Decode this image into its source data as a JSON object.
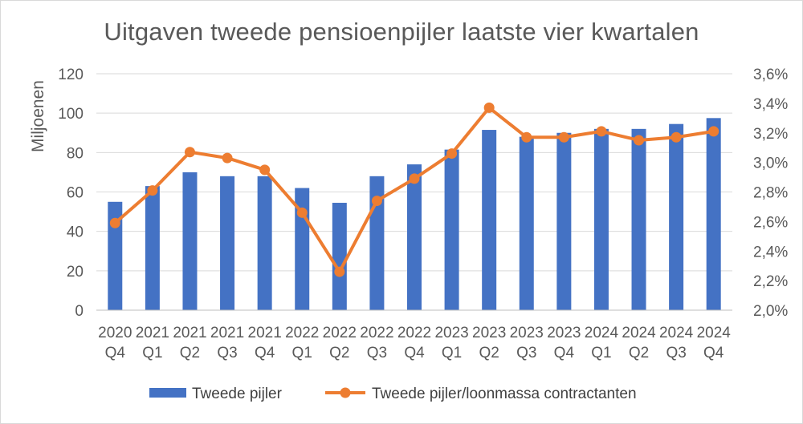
{
  "chart_data": {
    "type": "bar",
    "title": "Uitgaven tweede pensioenpijler laatste vier kwartalen",
    "ylabel": "Miljoenen",
    "ylim": [
      0,
      120
    ],
    "y_ticks": [
      "0",
      "20",
      "40",
      "60",
      "80",
      "100",
      "120"
    ],
    "y2lim": [
      2.0,
      3.6
    ],
    "y2_ticks": [
      "2,0%",
      "2,2%",
      "2,4%",
      "2,6%",
      "2,8%",
      "3,0%",
      "3,2%",
      "3,4%",
      "3,6%"
    ],
    "categories": [
      [
        "2020",
        "Q4"
      ],
      [
        "2021",
        "Q1"
      ],
      [
        "2021",
        "Q2"
      ],
      [
        "2021",
        "Q3"
      ],
      [
        "2021",
        "Q4"
      ],
      [
        "2022",
        "Q1"
      ],
      [
        "2022",
        "Q2"
      ],
      [
        "2022",
        "Q3"
      ],
      [
        "2022",
        "Q4"
      ],
      [
        "2023",
        "Q1"
      ],
      [
        "2023",
        "Q2"
      ],
      [
        "2023",
        "Q3"
      ],
      [
        "2023",
        "Q4"
      ],
      [
        "2024",
        "Q1"
      ],
      [
        "2024",
        "Q2"
      ],
      [
        "2024",
        "Q3"
      ],
      [
        "2024",
        "Q4"
      ]
    ],
    "series": [
      {
        "name": "Tweede pijler",
        "type": "bar",
        "axis": "left",
        "color": "#4472C4",
        "values": [
          55,
          63,
          70,
          68,
          68,
          62,
          54.5,
          68,
          74,
          81.5,
          91.5,
          88,
          90,
          92,
          92,
          94.5,
          97.5
        ]
      },
      {
        "name": "Tweede pijler/loonmassa contractanten",
        "type": "line",
        "axis": "right",
        "color": "#ED7D31",
        "values": [
          2.59,
          2.81,
          3.07,
          3.03,
          2.95,
          2.66,
          2.26,
          2.74,
          2.89,
          3.06,
          3.37,
          3.17,
          3.17,
          3.21,
          3.15,
          3.17,
          3.21
        ]
      }
    ],
    "grid": true,
    "legend_position": "bottom"
  }
}
